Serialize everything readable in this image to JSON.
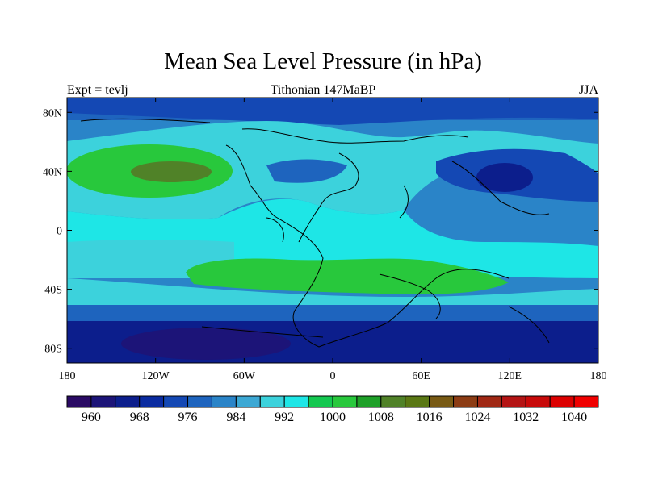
{
  "title": "Mean Sea Level Pressure (in hPa)",
  "left_label": "Expt = tevlj",
  "center_label": "Tithonian 147MaBP",
  "right_label": "JJA",
  "map": {
    "lon_range": [
      -180,
      180
    ],
    "lat_range": [
      -90,
      90
    ],
    "x_ticks": [
      {
        "value": -180,
        "label": "180"
      },
      {
        "value": -120,
        "label": "120W"
      },
      {
        "value": -60,
        "label": "60W"
      },
      {
        "value": 0,
        "label": "0"
      },
      {
        "value": 60,
        "label": "60E"
      },
      {
        "value": 120,
        "label": "120E"
      },
      {
        "value": 180,
        "label": "180"
      }
    ],
    "y_ticks": [
      {
        "value": 80,
        "label": "80N"
      },
      {
        "value": 40,
        "label": "40N"
      },
      {
        "value": 0,
        "label": "0"
      },
      {
        "value": -40,
        "label": "40S"
      },
      {
        "value": -80,
        "label": "80S"
      }
    ]
  },
  "colorbar": {
    "levels": [
      960,
      964,
      968,
      972,
      976,
      980,
      984,
      988,
      992,
      996,
      1000,
      1004,
      1008,
      1012,
      1016,
      1020,
      1024,
      1028,
      1032,
      1036,
      1040
    ],
    "labels": [
      "960",
      "968",
      "976",
      "984",
      "992",
      "1000",
      "1008",
      "1016",
      "1024",
      "1032",
      "1040"
    ],
    "colors": [
      "#2a0a64",
      "#1c1478",
      "#0c1e8c",
      "#0a2ba0",
      "#1448b4",
      "#1e64be",
      "#2a84c8",
      "#3ca8d4",
      "#3cd2dc",
      "#1ee6e6",
      "#14c850",
      "#28c83c",
      "#1ea028",
      "#508228",
      "#5a7814",
      "#785a14",
      "#8c3c14",
      "#a02814",
      "#b41414",
      "#c80a0a",
      "#dc0000",
      "#f00000"
    ]
  }
}
